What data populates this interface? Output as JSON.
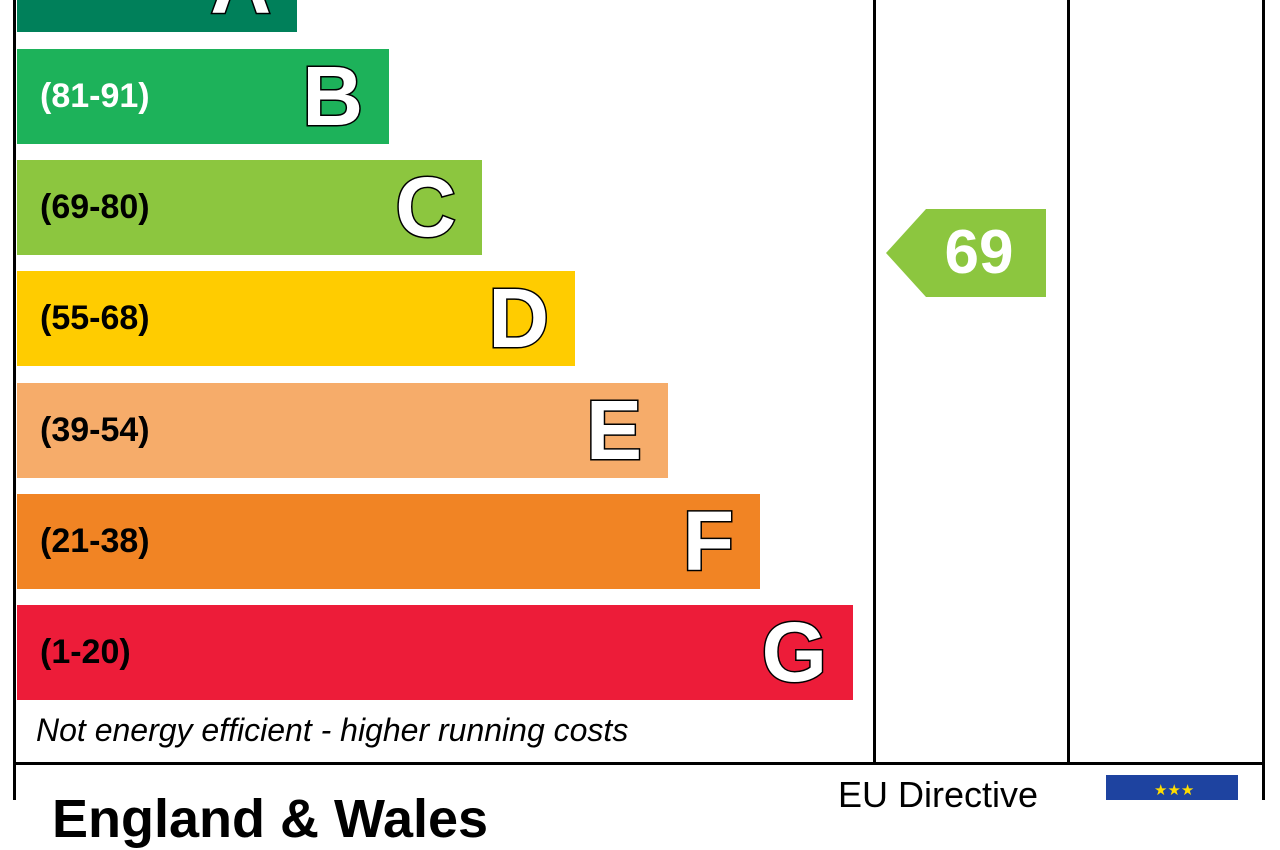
{
  "chart_data": {
    "type": "bar",
    "bands": [
      {
        "letter": "A",
        "range": "",
        "color": "#00805a"
      },
      {
        "letter": "B",
        "range": "(81-91)",
        "color": "#1db25a"
      },
      {
        "letter": "C",
        "range": "(69-80)",
        "color": "#8cc63f"
      },
      {
        "letter": "D",
        "range": "(55-68)",
        "color": "#ffcc00"
      },
      {
        "letter": "E",
        "range": "(39-54)",
        "color": "#f6ac6a"
      },
      {
        "letter": "F",
        "range": "(21-38)",
        "color": "#f18424"
      },
      {
        "letter": "G",
        "range": "(1-20)",
        "color": "#ed1c39"
      }
    ],
    "current": {
      "value": 69,
      "label": "69",
      "band": "C",
      "color": "#8cc63f"
    },
    "footnote": "Not energy efficient - higher running costs"
  },
  "footer": {
    "title": "England & Wales",
    "eu_directive": "EU Directive",
    "flag_color": "#1e43a0",
    "star_color": "#ffdd00"
  }
}
